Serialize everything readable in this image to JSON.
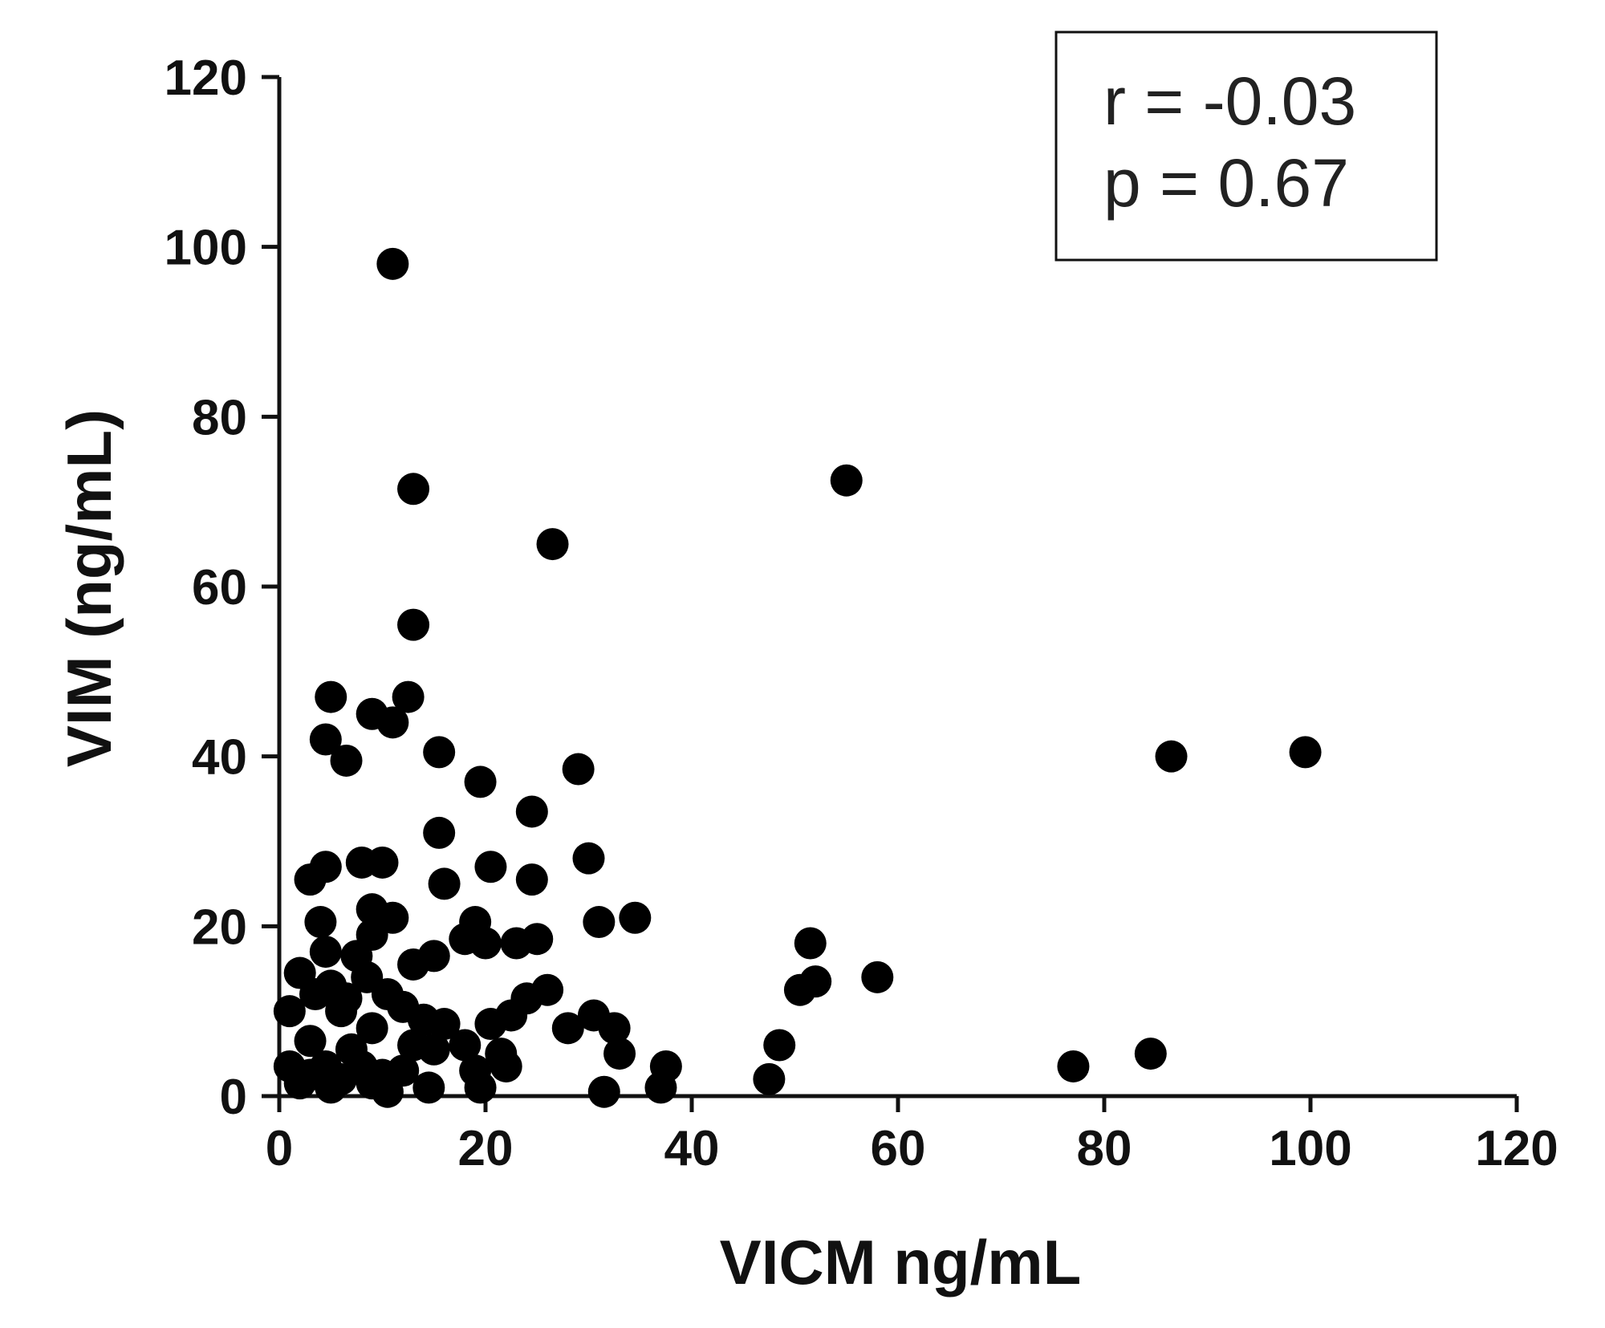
{
  "chart_data": {
    "type": "scatter",
    "title": "",
    "xlabel": "VICM ng/mL",
    "ylabel": "VIM (ng/mL)",
    "xlim": [
      0,
      120
    ],
    "ylim": [
      0,
      120
    ],
    "x_ticks": [
      "0",
      "20",
      "40",
      "60",
      "80",
      "100",
      "120"
    ],
    "y_ticks": [
      "0",
      "20",
      "40",
      "60",
      "80",
      "100",
      "120"
    ],
    "grid": false,
    "marker_color": "#000000",
    "annotation": {
      "placement": "top-right",
      "lines": [
        "r = -0.03",
        "p = 0.67"
      ]
    },
    "series": [
      {
        "points": [
          [
            11,
            98
          ],
          [
            55,
            72.5
          ],
          [
            13,
            71.5
          ],
          [
            26.5,
            65
          ],
          [
            13,
            55.5
          ],
          [
            5,
            47
          ],
          [
            12.5,
            47
          ],
          [
            9,
            45
          ],
          [
            11,
            44
          ],
          [
            4.5,
            42
          ],
          [
            6.5,
            39.5
          ],
          [
            15.5,
            40.5
          ],
          [
            29,
            38.5
          ],
          [
            86.5,
            40
          ],
          [
            99.5,
            40.5
          ],
          [
            19.5,
            37
          ],
          [
            24.5,
            33.5
          ],
          [
            15.5,
            31
          ],
          [
            3,
            25.5
          ],
          [
            4.5,
            27
          ],
          [
            8,
            27.5
          ],
          [
            10,
            27.5
          ],
          [
            16,
            25
          ],
          [
            20.5,
            27
          ],
          [
            24.5,
            25.5
          ],
          [
            30,
            28
          ],
          [
            4,
            20.5
          ],
          [
            9,
            22
          ],
          [
            11,
            21
          ],
          [
            19,
            20.5
          ],
          [
            31,
            20.5
          ],
          [
            34.5,
            21
          ],
          [
            4.5,
            17
          ],
          [
            7.5,
            16.5
          ],
          [
            9,
            19
          ],
          [
            13,
            15.5
          ],
          [
            15,
            16.5
          ],
          [
            18,
            18.5
          ],
          [
            20,
            18
          ],
          [
            23,
            18
          ],
          [
            25,
            18.5
          ],
          [
            51.5,
            18
          ],
          [
            2,
            14.5
          ],
          [
            3.5,
            12
          ],
          [
            5,
            13
          ],
          [
            6.5,
            11.5
          ],
          [
            8.5,
            14
          ],
          [
            10.5,
            12
          ],
          [
            12,
            10.5
          ],
          [
            24,
            11.5
          ],
          [
            26,
            12.5
          ],
          [
            50.5,
            12.5
          ],
          [
            52,
            13.5
          ],
          [
            58,
            14
          ],
          [
            1,
            10
          ],
          [
            6,
            10
          ],
          [
            9,
            8
          ],
          [
            14,
            9
          ],
          [
            16,
            8.5
          ],
          [
            20.5,
            8.5
          ],
          [
            22.5,
            9.5
          ],
          [
            28,
            8
          ],
          [
            30.5,
            9.5
          ],
          [
            32.5,
            8
          ],
          [
            3,
            6.5
          ],
          [
            7,
            5.5
          ],
          [
            13,
            6
          ],
          [
            15,
            5.5
          ],
          [
            18,
            6
          ],
          [
            21.5,
            5
          ],
          [
            33,
            5
          ],
          [
            48.5,
            6
          ],
          [
            84.5,
            5
          ],
          [
            1,
            3.5
          ],
          [
            3,
            2.5
          ],
          [
            4.5,
            3.5
          ],
          [
            6,
            2
          ],
          [
            8,
            3.5
          ],
          [
            10,
            2.5
          ],
          [
            12,
            3
          ],
          [
            19,
            3
          ],
          [
            22,
            3.5
          ],
          [
            37.5,
            3.5
          ],
          [
            77,
            3.5
          ],
          [
            2,
            1.5
          ],
          [
            5,
            1
          ],
          [
            9,
            1.5
          ],
          [
            10.5,
            0.5
          ],
          [
            14.5,
            1
          ],
          [
            19.5,
            1
          ],
          [
            31.5,
            0.5
          ],
          [
            37,
            1
          ],
          [
            47.5,
            2
          ]
        ]
      }
    ]
  }
}
